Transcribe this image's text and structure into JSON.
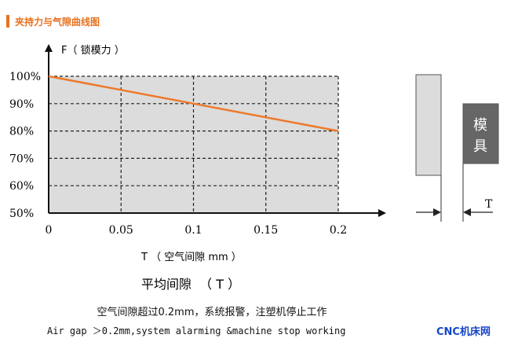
{
  "header": {
    "title": "夹持力与气隙曲线图",
    "accent": "#e8711f"
  },
  "chart_data": {
    "type": "line",
    "ylabel": "F（ 锁模力 ）",
    "xlabel": "T （ 空气间隙 mm ）",
    "x_tick_labels": [
      "0",
      "0.05",
      "0.1",
      "0.15",
      "0.2"
    ],
    "x_ticks": [
      0,
      0.05,
      0.1,
      0.15,
      0.2
    ],
    "y_tick_labels": [
      "100%",
      "90%",
      "80%",
      "70%",
      "60%",
      "50%"
    ],
    "y_ticks": [
      100,
      90,
      80,
      70,
      60,
      50
    ],
    "xlim": [
      0,
      0.2
    ],
    "ylim": [
      50,
      100
    ],
    "grid": true,
    "series": [
      {
        "x": [
          0,
          0.2
        ],
        "y": [
          100,
          80
        ],
        "color": "#ec7a2c"
      }
    ]
  },
  "subtitle": "平均间隙  （ T ）",
  "note_cn": "空气间隙超过0.2mm，系统报警，注塑机停止工作",
  "note_en": "Air gap ＞0.2mm,system alarming &machine stop working",
  "diagram": {
    "mold_label": [
      "模",
      "具"
    ],
    "gap_label": "T"
  },
  "watermark": "CNC机床网"
}
